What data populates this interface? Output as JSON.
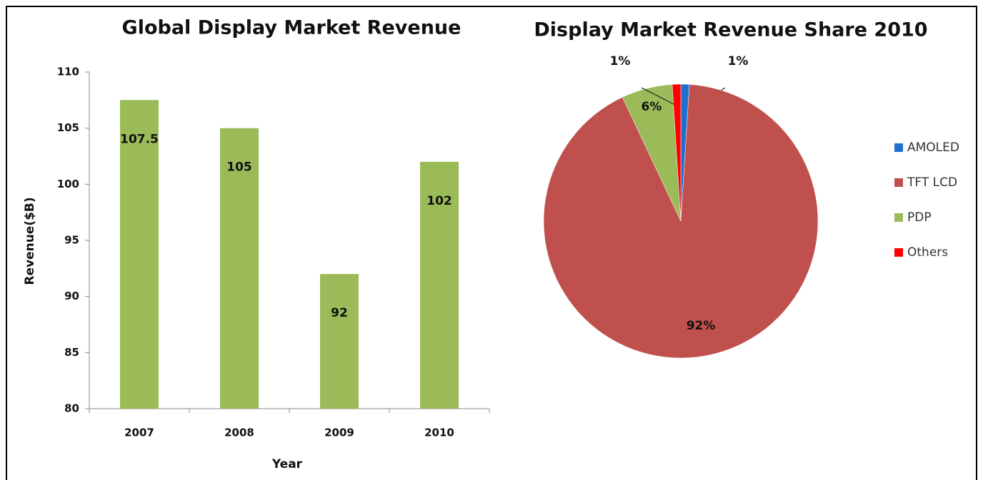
{
  "chart_data": [
    {
      "type": "bar",
      "title": "Global Display Market Revenue",
      "y_label": "Revenue($B)",
      "x_label": "Year",
      "categories": [
        "2007",
        "2008",
        "2009",
        "2010"
      ],
      "values": [
        107.5,
        105,
        92,
        102
      ],
      "color": "#9bbb59",
      "ylim": [
        80,
        110
      ],
      "yticks": [
        80,
        85,
        90,
        95,
        100,
        105,
        110
      ]
    },
    {
      "type": "pie",
      "title": "Display Market Revenue Share 2010",
      "categories": [
        "AMOLED",
        "TFT LCD",
        "PDP",
        "Others"
      ],
      "values": [
        1,
        92,
        6,
        1
      ],
      "value_labels": [
        "1%",
        "92%",
        "6%",
        "1%"
      ],
      "colors": [
        "#1f6fcf",
        "#c0504d",
        "#9bbb59",
        "#ff0000"
      ],
      "legend": "right"
    }
  ]
}
